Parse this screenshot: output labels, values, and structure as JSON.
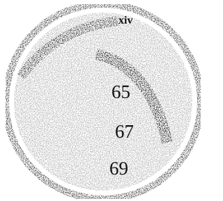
{
  "labels": [
    "xiv",
    "65",
    "67",
    "69"
  ]
}
